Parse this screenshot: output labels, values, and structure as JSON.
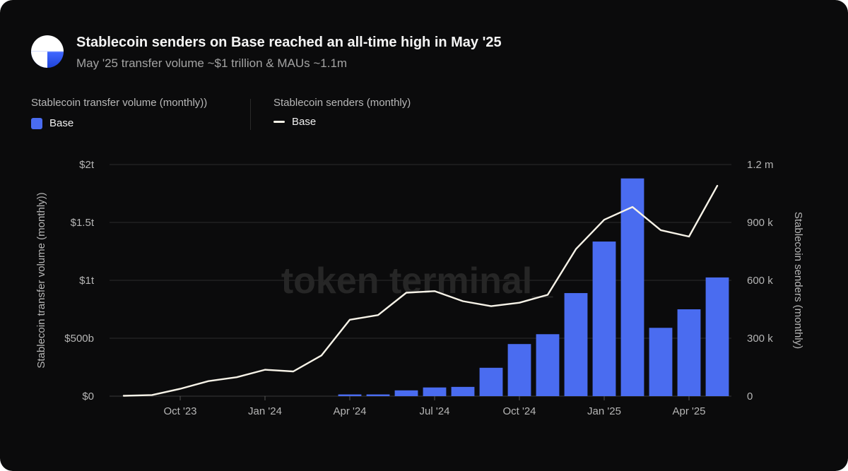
{
  "header": {
    "title": "Stablecoin senders on Base reached an all-time high in May '25",
    "subtitle": "May '25 transfer volume ~$1 trillion & MAUs ~1.1m"
  },
  "legend": {
    "left": {
      "heading": "Stablecoin transfer volume (monthly))",
      "item": "Base"
    },
    "right": {
      "heading": "Stablecoin senders (monthly)",
      "item": "Base"
    }
  },
  "watermark": "token terminal_",
  "colors": {
    "bar": "#4a6cf0",
    "line": "#f7f3e8",
    "background": "#0b0b0c",
    "grid": "#2b2b2b"
  },
  "chart_data": {
    "type": "bar+line",
    "title": "Stablecoin senders on Base reached an all-time high in May '25",
    "x": [
      "Aug '23",
      "Sep '23",
      "Oct '23",
      "Nov '23",
      "Dec '23",
      "Jan '24",
      "Feb '24",
      "Mar '24",
      "Apr '24",
      "May '24",
      "Jun '24",
      "Jul '24",
      "Aug '24",
      "Sep '24",
      "Oct '24",
      "Nov '24",
      "Dec '24",
      "Jan '25",
      "Feb '25",
      "Mar '25",
      "Apr '25",
      "May '25"
    ],
    "xticks": [
      {
        "label": "Oct '23",
        "index": 2
      },
      {
        "label": "Jan '24",
        "index": 5
      },
      {
        "label": "Apr '24",
        "index": 8
      },
      {
        "label": "Jul '24",
        "index": 11
      },
      {
        "label": "Oct '24",
        "index": 14
      },
      {
        "label": "Jan '25",
        "index": 17
      },
      {
        "label": "Apr '25",
        "index": 20
      }
    ],
    "series": [
      {
        "name": "Stablecoin transfer volume (monthly)) — Base",
        "kind": "bar",
        "axis": "left",
        "unit": "USD billions",
        "values": [
          0,
          0,
          0,
          0,
          0,
          0,
          0,
          0,
          15,
          15,
          50,
          75,
          80,
          245,
          450,
          535,
          890,
          1335,
          1880,
          590,
          750,
          1025
        ]
      },
      {
        "name": "Stablecoin senders (monthly) — Base",
        "kind": "line",
        "axis": "right",
        "unit": "senders (thousands)",
        "values": [
          2,
          6,
          38,
          78,
          98,
          137,
          128,
          211,
          396,
          420,
          536,
          544,
          492,
          466,
          484,
          525,
          762,
          914,
          980,
          860,
          827,
          1090
        ]
      }
    ],
    "yleft": {
      "label": "Stablecoin transfer volume (monthly))",
      "lim": [
        0,
        2000
      ],
      "ticks": [
        0,
        500,
        1000,
        1500,
        2000
      ],
      "tick_labels": [
        "$0",
        "$500b",
        "$1t",
        "$1.5t",
        "$2t"
      ]
    },
    "yright": {
      "label": "Stablecoin senders (monthly)",
      "lim": [
        0,
        1200
      ],
      "ticks": [
        0,
        300,
        600,
        900,
        1200
      ],
      "tick_labels": [
        "0",
        "300 k",
        "600 k",
        "900 k",
        "1.2 m"
      ]
    },
    "grid": true,
    "legend_position": "top-left"
  }
}
